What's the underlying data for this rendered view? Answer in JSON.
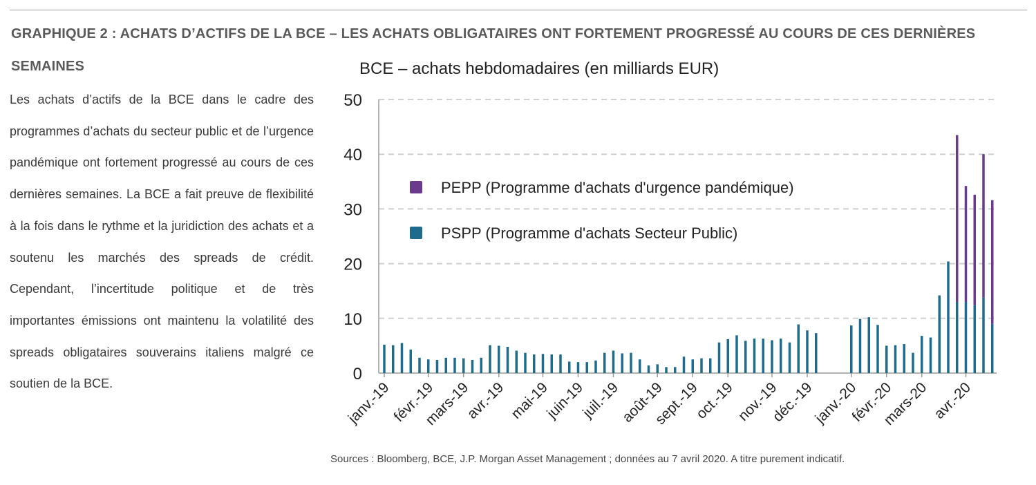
{
  "header": {
    "headline": "GRAPHIQUE 2 : ACHATS D’ACTIFS DE LA BCE – LES ACHATS OBLIGATAIRES ONT FORTEMENT PROGRESSÉ AU COURS DE CES DERNIÈRES SEMAINES"
  },
  "commentary": {
    "text": "Les achats d’actifs de la BCE dans le cadre des programmes d’achats du secteur public et de l’urgence pandémique ont fortement progressé au cours de ces dernières semaines. La BCE a fait preuve de flexibilité à la fois dans le rythme et la juridiction des achats et a soutenu les marchés des spreads de crédit. Cependant, l’incertitude politique et de très importantes émissions ont maintenu la volatilité des spreads obligataires souverains italiens malgré ce soutien de la BCE."
  },
  "footer": {
    "source": "Sources : Bloomberg, BCE, J.P. Morgan Asset Management ; données au 7 avril 2020. A titre purement indicatif."
  },
  "chart_data": {
    "type": "bar",
    "stacked": true,
    "title": "BCE – achats hebdomadaires (en milliards EUR)",
    "xlabel": "",
    "ylabel": "",
    "ylim": [
      0,
      50
    ],
    "yticks": [
      0,
      10,
      20,
      30,
      40,
      50
    ],
    "grid": "horizontal dashed",
    "legend_position": "upper-left inside plot",
    "x_tick_labels": [
      "janv.-19",
      "févr.-19",
      "mars-19",
      "avr.-19",
      "mai-19",
      "juin-19",
      "juil.-19",
      "août-19",
      "sept.-19",
      "oct.-19",
      "nov.-19",
      "déc.-19",
      "janv.-20",
      "févr.-20",
      "mars-20",
      "avr.-20"
    ],
    "x_tick_week_index": [
      0,
      5,
      9,
      13,
      18,
      22,
      26,
      31,
      35,
      39,
      44,
      48,
      53,
      57,
      61,
      66
    ],
    "weeks": 70,
    "series": [
      {
        "name": "PSPP (Programme d'achats Secteur Public)",
        "color": "#1f6b8e",
        "values": [
          5.2,
          5.1,
          5.5,
          4.3,
          2.8,
          2.5,
          2.4,
          2.8,
          2.8,
          2.7,
          2.4,
          2.8,
          5.1,
          5.0,
          4.8,
          4.1,
          3.7,
          3.4,
          3.5,
          3.4,
          3.4,
          2.1,
          2.0,
          2.0,
          2.3,
          3.7,
          4.1,
          3.6,
          3.7,
          2.5,
          1.4,
          1.6,
          1.1,
          1.1,
          3.0,
          2.5,
          2.7,
          2.7,
          5.6,
          6.2,
          6.9,
          5.9,
          6.3,
          6.3,
          6.0,
          6.3,
          5.6,
          8.9,
          7.8,
          7.3,
          null,
          null,
          null,
          8.7,
          9.9,
          10.2,
          8.8,
          5.0,
          5.1,
          5.3,
          3.7,
          6.8,
          6.5,
          14.2,
          20.4,
          13.0,
          13.0,
          12.4,
          13.8,
          9.0
        ]
      },
      {
        "name": "PEPP (Programme d'achats d'urgence pandémique)",
        "color": "#6a3a8c",
        "values": [
          0,
          0,
          0,
          0,
          0,
          0,
          0,
          0,
          0,
          0,
          0,
          0,
          0,
          0,
          0,
          0,
          0,
          0,
          0,
          0,
          0,
          0,
          0,
          0,
          0,
          0,
          0,
          0,
          0,
          0,
          0,
          0,
          0,
          0,
          0,
          0,
          0,
          0,
          0,
          0,
          0,
          0,
          0,
          0,
          0,
          0,
          0,
          0,
          0,
          0,
          null,
          null,
          null,
          0,
          0,
          0,
          0,
          0,
          0,
          0,
          0,
          0,
          0,
          0,
          0,
          30.5,
          21.2,
          20.2,
          26.2,
          22.6
        ]
      }
    ]
  }
}
